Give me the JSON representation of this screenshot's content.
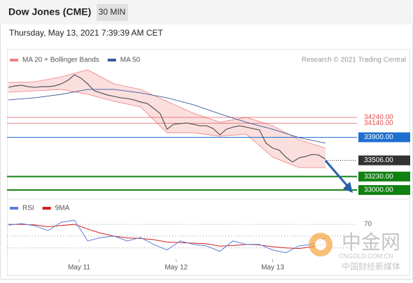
{
  "header": {
    "title": "Dow Jones (CME)",
    "interval": "30 MIN",
    "timestamp": "Thursday, May 13, 2021 7:39:39 AM CET",
    "credit": "Research © 2021 Trading Central"
  },
  "watermark": {
    "brand": "中金网",
    "site": "CNGOLD.COM.CN",
    "slogan": "中国财经新媒体"
  },
  "chart_data": [
    {
      "type": "line",
      "name_price": "price",
      "xlim": [
        0,
        48
      ],
      "ylim": [
        32880,
        35110
      ],
      "color": "#555555",
      "x": [
        0,
        1,
        2,
        3,
        4,
        5,
        6,
        7,
        8,
        9,
        10,
        11,
        12,
        13,
        14,
        15,
        16,
        17,
        18,
        19,
        20,
        21,
        22,
        23,
        24,
        25,
        26,
        27,
        28,
        29,
        30,
        31,
        32,
        33,
        34,
        35,
        36,
        37,
        38,
        39,
        40,
        41,
        42,
        43,
        44,
        45,
        46,
        47,
        48
      ],
      "values": [
        34753,
        34776,
        34788,
        34764,
        34753,
        34764,
        34764,
        34776,
        34812,
        34872,
        34967,
        34908,
        34812,
        34693,
        34657,
        34621,
        34598,
        34574,
        34562,
        34538,
        34502,
        34478,
        34395,
        34300,
        34037,
        34121,
        34133,
        34145,
        34121,
        34097,
        34097,
        34049,
        33942,
        34037,
        34073,
        34097,
        34073,
        34049,
        34025,
        33799,
        33716,
        33680,
        33561,
        33477,
        33549,
        33573,
        33608,
        33596,
        33525
      ],
      "series": [
        {
          "name": "MA 20 + Bollinger Bands",
          "color": "#f08080",
          "x": [
            0,
            4,
            8,
            12,
            16,
            20,
            24,
            28,
            32,
            36,
            40,
            44,
            48
          ],
          "upper": [
            34836,
            34848,
            34931,
            35051,
            34812,
            34717,
            34514,
            34312,
            34157,
            34240,
            34097,
            33859,
            33715
          ],
          "lower": [
            34669,
            34693,
            34717,
            34633,
            34514,
            34419,
            33978,
            33978,
            33918,
            33954,
            33561,
            33382,
            33382
          ]
        },
        {
          "name": "MA 50",
          "color": "#3a5a9a",
          "x": [
            0,
            4,
            8,
            12,
            16,
            20,
            24,
            28,
            32,
            36,
            40,
            44,
            48
          ],
          "values": [
            34538,
            34574,
            34633,
            34717,
            34717,
            34657,
            34574,
            34455,
            34300,
            34157,
            34037,
            33894,
            33799
          ]
        }
      ],
      "levels": [
        {
          "value": 34240,
          "label": "34240.00",
          "color": "#e05050",
          "style": "plain"
        },
        {
          "value": 34140,
          "label": "34140.00",
          "color": "#e05050",
          "style": "plain"
        },
        {
          "value": 33900,
          "label": "33900.00",
          "color": "#1e6fd0",
          "style": "box"
        },
        {
          "value": 33506,
          "label": "33506.00",
          "color": "#333333",
          "style": "dotted"
        },
        {
          "value": 33230,
          "label": "33230.00",
          "color": "#108010",
          "style": "box"
        },
        {
          "value": 33000,
          "label": "33000.00",
          "color": "#108010",
          "style": "box"
        }
      ]
    },
    {
      "type": "line",
      "xlim": [
        0,
        48
      ],
      "ylim": [
        6,
        95
      ],
      "yticks": [
        70
      ],
      "guides": [
        50,
        30
      ],
      "xticks": [
        {
          "value": 10.7,
          "label": "May 11"
        },
        {
          "value": 25.4,
          "label": "May 12"
        },
        {
          "value": 40,
          "label": "May 13"
        }
      ],
      "x": [
        0,
        2,
        4,
        6,
        8,
        10,
        12,
        14,
        16,
        18,
        20,
        22,
        24,
        26,
        28,
        30,
        32,
        34,
        36,
        38,
        40,
        42,
        44,
        46,
        48
      ],
      "series": [
        {
          "name": "RSI",
          "color": "#5b7fd6",
          "values": [
            68.8,
            71.2,
            67.6,
            59.4,
            73.5,
            77.1,
            41.8,
            47.6,
            50,
            41.8,
            47.6,
            35.9,
            26.5,
            41.8,
            35.9,
            33.5,
            24.1,
            41.8,
            35.9,
            35.9,
            26.5,
            21.8,
            33.5,
            35.9,
            47.6
          ]
        },
        {
          "name": "9MA",
          "color": "#d02020",
          "values": [
            70,
            70,
            69,
            66,
            68,
            70,
            62,
            55,
            50,
            47,
            46,
            44,
            40,
            39,
            38,
            37,
            33,
            34,
            36,
            35,
            32,
            30,
            29,
            32,
            37
          ]
        }
      ]
    }
  ]
}
